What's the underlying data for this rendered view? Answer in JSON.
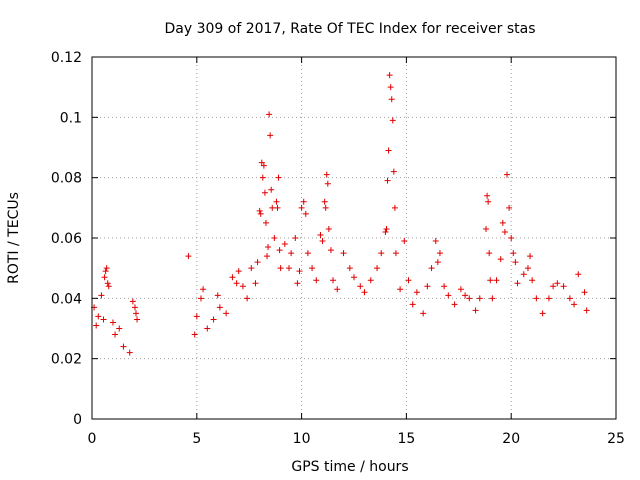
{
  "chart_data": {
    "type": "scatter",
    "title": "Day 309 of 2017, Rate Of TEC Index for receiver stas",
    "xlabel": "GPS time / hours",
    "ylabel": "ROTI / TECUs",
    "xlim": [
      0,
      25
    ],
    "ylim": [
      0,
      0.12
    ],
    "xticks": [
      "0",
      "5",
      "10",
      "15",
      "20",
      "25"
    ],
    "yticks": [
      "0",
      "0.02",
      "0.04",
      "0.06",
      "0.08",
      "0.1",
      "0.12"
    ],
    "grid": true,
    "marker": "plus",
    "color": "#e00000",
    "series": [
      {
        "points": [
          [
            0.1,
            0.037
          ],
          [
            0.2,
            0.031
          ],
          [
            0.3,
            0.034
          ],
          [
            0.45,
            0.041
          ],
          [
            0.55,
            0.033
          ],
          [
            0.6,
            0.047
          ],
          [
            0.65,
            0.049
          ],
          [
            0.7,
            0.05
          ],
          [
            0.75,
            0.045
          ],
          [
            0.8,
            0.044
          ],
          [
            1.0,
            0.032
          ],
          [
            1.1,
            0.028
          ],
          [
            1.3,
            0.03
          ],
          [
            1.5,
            0.024
          ],
          [
            1.8,
            0.022
          ],
          [
            1.95,
            0.039
          ],
          [
            2.05,
            0.037
          ],
          [
            2.1,
            0.035
          ],
          [
            2.15,
            0.033
          ],
          [
            4.6,
            0.054
          ],
          [
            4.9,
            0.028
          ],
          [
            5.0,
            0.034
          ],
          [
            5.2,
            0.04
          ],
          [
            5.3,
            0.043
          ],
          [
            5.5,
            0.03
          ],
          [
            5.8,
            0.033
          ],
          [
            6.0,
            0.041
          ],
          [
            6.1,
            0.037
          ],
          [
            6.4,
            0.035
          ],
          [
            6.7,
            0.047
          ],
          [
            6.9,
            0.045
          ],
          [
            7.0,
            0.049
          ],
          [
            7.2,
            0.044
          ],
          [
            7.4,
            0.04
          ],
          [
            7.6,
            0.05
          ],
          [
            7.8,
            0.045
          ],
          [
            7.9,
            0.052
          ],
          [
            8.0,
            0.069
          ],
          [
            8.05,
            0.068
          ],
          [
            8.1,
            0.085
          ],
          [
            8.15,
            0.08
          ],
          [
            8.2,
            0.084
          ],
          [
            8.25,
            0.075
          ],
          [
            8.3,
            0.065
          ],
          [
            8.35,
            0.054
          ],
          [
            8.4,
            0.057
          ],
          [
            8.45,
            0.101
          ],
          [
            8.5,
            0.094
          ],
          [
            8.55,
            0.076
          ],
          [
            8.6,
            0.07
          ],
          [
            8.7,
            0.06
          ],
          [
            8.8,
            0.072
          ],
          [
            8.85,
            0.07
          ],
          [
            8.9,
            0.08
          ],
          [
            8.95,
            0.056
          ],
          [
            9.0,
            0.05
          ],
          [
            9.2,
            0.058
          ],
          [
            9.4,
            0.05
          ],
          [
            9.5,
            0.055
          ],
          [
            9.7,
            0.06
          ],
          [
            9.8,
            0.045
          ],
          [
            9.9,
            0.049
          ],
          [
            10.0,
            0.07
          ],
          [
            10.1,
            0.072
          ],
          [
            10.2,
            0.068
          ],
          [
            10.3,
            0.055
          ],
          [
            10.5,
            0.05
          ],
          [
            10.7,
            0.046
          ],
          [
            10.9,
            0.061
          ],
          [
            11.0,
            0.059
          ],
          [
            11.1,
            0.072
          ],
          [
            11.15,
            0.07
          ],
          [
            11.2,
            0.081
          ],
          [
            11.25,
            0.078
          ],
          [
            11.3,
            0.063
          ],
          [
            11.4,
            0.056
          ],
          [
            11.5,
            0.046
          ],
          [
            11.7,
            0.043
          ],
          [
            12.0,
            0.055
          ],
          [
            12.3,
            0.05
          ],
          [
            12.5,
            0.047
          ],
          [
            12.8,
            0.044
          ],
          [
            13.0,
            0.042
          ],
          [
            13.3,
            0.046
          ],
          [
            13.6,
            0.05
          ],
          [
            13.8,
            0.055
          ],
          [
            14.0,
            0.062
          ],
          [
            14.05,
            0.063
          ],
          [
            14.1,
            0.079
          ],
          [
            14.15,
            0.089
          ],
          [
            14.2,
            0.114
          ],
          [
            14.25,
            0.11
          ],
          [
            14.3,
            0.106
          ],
          [
            14.35,
            0.099
          ],
          [
            14.4,
            0.082
          ],
          [
            14.45,
            0.07
          ],
          [
            14.5,
            0.055
          ],
          [
            14.7,
            0.043
          ],
          [
            14.9,
            0.059
          ],
          [
            15.1,
            0.046
          ],
          [
            15.3,
            0.038
          ],
          [
            15.5,
            0.042
          ],
          [
            15.8,
            0.035
          ],
          [
            16.0,
            0.044
          ],
          [
            16.2,
            0.05
          ],
          [
            16.4,
            0.059
          ],
          [
            16.5,
            0.052
          ],
          [
            16.6,
            0.055
          ],
          [
            16.8,
            0.044
          ],
          [
            17.0,
            0.041
          ],
          [
            17.3,
            0.038
          ],
          [
            17.6,
            0.043
          ],
          [
            17.8,
            0.041
          ],
          [
            18.0,
            0.04
          ],
          [
            18.3,
            0.036
          ],
          [
            18.5,
            0.04
          ],
          [
            18.8,
            0.063
          ],
          [
            18.85,
            0.074
          ],
          [
            18.9,
            0.072
          ],
          [
            18.95,
            0.055
          ],
          [
            19.0,
            0.046
          ],
          [
            19.1,
            0.04
          ],
          [
            19.3,
            0.046
          ],
          [
            19.5,
            0.053
          ],
          [
            19.6,
            0.065
          ],
          [
            19.7,
            0.062
          ],
          [
            19.8,
            0.081
          ],
          [
            19.9,
            0.07
          ],
          [
            20.0,
            0.06
          ],
          [
            20.1,
            0.055
          ],
          [
            20.2,
            0.052
          ],
          [
            20.3,
            0.045
          ],
          [
            20.6,
            0.048
          ],
          [
            20.8,
            0.05
          ],
          [
            20.9,
            0.054
          ],
          [
            21.0,
            0.046
          ],
          [
            21.2,
            0.04
          ],
          [
            21.5,
            0.035
          ],
          [
            21.8,
            0.04
          ],
          [
            22.0,
            0.044
          ],
          [
            22.2,
            0.045
          ],
          [
            22.5,
            0.044
          ],
          [
            22.8,
            0.04
          ],
          [
            23.0,
            0.038
          ],
          [
            23.2,
            0.048
          ],
          [
            23.5,
            0.042
          ],
          [
            23.6,
            0.036
          ]
        ]
      }
    ]
  }
}
